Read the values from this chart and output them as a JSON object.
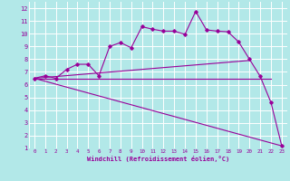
{
  "xlabel": "Windchill (Refroidissement éolien,°C)",
  "bg_color": "#b2e8e8",
  "grid_color": "#ffffff",
  "line_color": "#990099",
  "xlim": [
    -0.5,
    23.5
  ],
  "ylim": [
    1,
    12.5
  ],
  "xticks": [
    0,
    1,
    2,
    3,
    4,
    5,
    6,
    7,
    8,
    9,
    10,
    11,
    12,
    13,
    14,
    15,
    16,
    17,
    18,
    19,
    20,
    21,
    22,
    23
  ],
  "yticks": [
    1,
    2,
    3,
    4,
    5,
    6,
    7,
    8,
    9,
    10,
    11,
    12
  ],
  "line1_x": [
    0,
    1,
    2,
    3,
    4,
    5,
    6,
    7,
    8,
    9,
    10,
    11,
    12,
    13,
    14,
    15,
    16,
    17,
    18,
    19,
    20,
    21,
    22,
    23
  ],
  "line1_y": [
    6.5,
    6.7,
    6.5,
    7.2,
    7.6,
    7.6,
    6.7,
    9.0,
    9.3,
    8.9,
    10.55,
    10.35,
    10.2,
    10.2,
    9.95,
    11.75,
    10.3,
    10.2,
    10.15,
    9.35,
    8.0,
    6.65,
    4.6,
    1.2
  ],
  "line2_x": [
    0,
    22
  ],
  "line2_y": [
    6.5,
    6.5
  ],
  "line3_x": [
    0,
    20
  ],
  "line3_y": [
    6.5,
    7.9
  ],
  "line4_x": [
    0,
    23
  ],
  "line4_y": [
    6.5,
    1.2
  ]
}
